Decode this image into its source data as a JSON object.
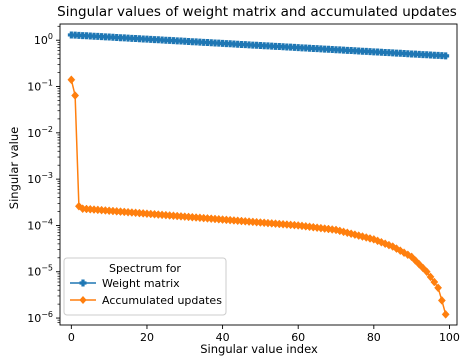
{
  "chart_data": {
    "type": "line",
    "title": "Singular values of weight matrix and accumulated updates",
    "xlabel": "Singular value index",
    "ylabel": "Singular value",
    "xlim": [
      -3,
      102
    ],
    "ylim": [
      7.08e-07,
      2.24
    ],
    "yscale": "log",
    "grid": false,
    "xticks": [
      0,
      20,
      40,
      60,
      80,
      100
    ],
    "xtick_labels": [
      "0",
      "20",
      "40",
      "60",
      "80",
      "100"
    ],
    "yticks": [
      1.0,
      0.1,
      0.01,
      0.001,
      0.0001,
      1e-05,
      1e-06
    ],
    "ytick_labels": [
      {
        "base": "10",
        "exp": "0"
      },
      {
        "base": "10",
        "exp": "−1"
      },
      {
        "base": "10",
        "exp": "−2"
      },
      {
        "base": "10",
        "exp": "−3"
      },
      {
        "base": "10",
        "exp": "−4"
      },
      {
        "base": "10",
        "exp": "−5"
      },
      {
        "base": "10",
        "exp": "−6"
      }
    ],
    "legend": {
      "title": "Spectrum for",
      "placement": "lower-left"
    },
    "series": [
      {
        "name": "Weight matrix",
        "color": "#1f77b4",
        "marker": "plus",
        "n": 100,
        "start": 1.3,
        "end": 0.46
      },
      {
        "name": "Accumulated updates",
        "color": "#ff7f0e",
        "marker": "diamond",
        "n": 100,
        "leading_values": [
          0.14,
          0.064,
          0.00026,
          0.00023
        ],
        "bulk_end_index": 60,
        "bulk_end_value": 0.0001,
        "tail_end_value": 1.2e-06,
        "tail_knots": [
          [
            60,
            0.0001
          ],
          [
            70,
            8e-05
          ],
          [
            80,
            5e-05
          ],
          [
            85,
            3.5e-05
          ],
          [
            90,
            2.1e-05
          ],
          [
            94,
            1e-05
          ],
          [
            96,
            6e-06
          ],
          [
            97,
            4.5e-06
          ],
          [
            98,
            2.4e-06
          ],
          [
            99,
            1.2e-06
          ]
        ]
      }
    ]
  }
}
